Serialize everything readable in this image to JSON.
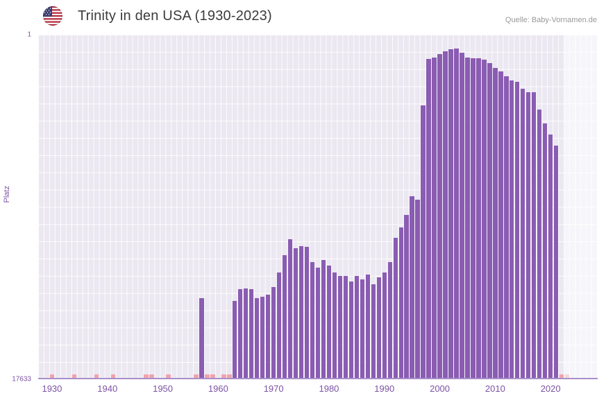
{
  "header": {
    "title": "Trinity in den USA (1930-2023)",
    "source": "Quelle: Baby-Vornamen.de"
  },
  "chart_data": {
    "type": "bar",
    "title": "Trinity in den USA (1930-2023)",
    "xlabel": "",
    "ylabel": "Platz",
    "x_domain": [
      1927.5,
      2028.5
    ],
    "ylim": [
      1,
      17633
    ],
    "y_inverted": true,
    "y_gridline_count": 20,
    "grid": true,
    "x_ticks": [
      1930,
      1940,
      1950,
      1960,
      1970,
      1980,
      1990,
      2000,
      2010,
      2020
    ],
    "y_ticks": [
      {
        "label": "1",
        "rank": 1
      },
      {
        "label": "17633",
        "rank": 17633
      }
    ],
    "years": [
      1957,
      1963,
      1964,
      1965,
      1966,
      1967,
      1968,
      1969,
      1970,
      1971,
      1972,
      1973,
      1974,
      1975,
      1976,
      1977,
      1978,
      1979,
      1980,
      1981,
      1982,
      1983,
      1984,
      1985,
      1986,
      1987,
      1988,
      1989,
      1990,
      1991,
      1992,
      1993,
      1994,
      1995,
      1996,
      1997,
      1998,
      1999,
      2000,
      2001,
      2002,
      2003,
      2004,
      2005,
      2006,
      2007,
      2008,
      2009,
      2010,
      2011,
      2012,
      2013,
      2014,
      2015,
      2016,
      2017,
      2018,
      2019,
      2020,
      2021
    ],
    "ranks": [
      13550,
      13700,
      13100,
      13050,
      13100,
      13550,
      13480,
      13380,
      13000,
      12250,
      11350,
      10550,
      11000,
      10900,
      10930,
      11700,
      12000,
      11600,
      11900,
      12250,
      12400,
      12400,
      12700,
      12400,
      12600,
      12350,
      12850,
      12500,
      12250,
      11700,
      10450,
      9950,
      9300,
      8350,
      8500,
      3700,
      1300,
      1250,
      1050,
      920,
      820,
      780,
      1000,
      1250,
      1280,
      1280,
      1350,
      1530,
      1780,
      1950,
      2200,
      2400,
      2480,
      2840,
      3020,
      3020,
      3900,
      4600,
      5180,
      5750
    ],
    "unranked_years": [
      1930,
      1934,
      1938,
      1941,
      1947,
      1948,
      1951,
      1956,
      1958,
      1959,
      1961,
      1962,
      2022,
      2023
    ],
    "future_band_start": 2022.5,
    "bar_color": "#8a5cb2",
    "unranked_color": "#f0a3ab",
    "plot_bg": "#ebe8f1",
    "gridline_color": "rgba(255,255,255,0.85)",
    "axis_text_color": "#7b52a3"
  }
}
